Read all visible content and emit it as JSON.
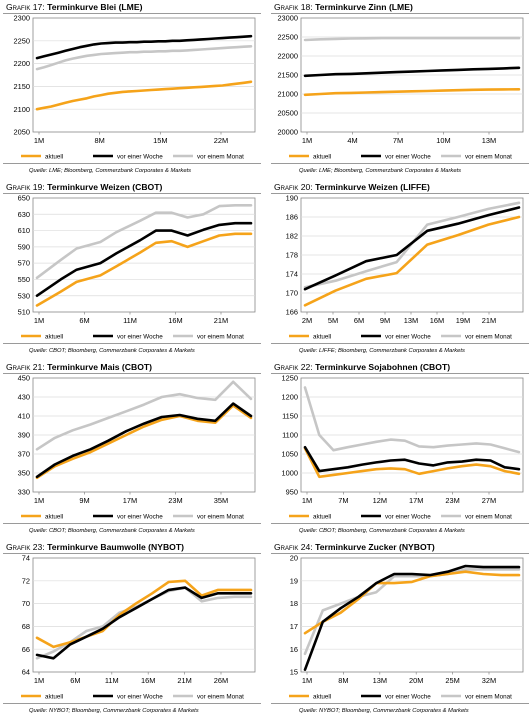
{
  "colors": {
    "aktuell": "#f5a31a",
    "vor_einer_woche": "#000000",
    "vor_einem_monat": "#c6c6c6"
  },
  "legend": {
    "aktuell": "aktuell",
    "woche": "vor einer Woche",
    "monat": "vor einem Monat"
  },
  "charts": [
    {
      "label": "Grafik 17:",
      "name": "Terminkurve Blei (LME)",
      "source": "Quelle: LME; Bloomberg, Commerzbank Corporates & Markets",
      "xticks": [
        "1M",
        "8M",
        "15M",
        "22M"
      ],
      "yticks": [
        "2050",
        "2100",
        "2150",
        "2200",
        "2250",
        "2300"
      ],
      "chart_data": {
        "type": "line",
        "ylim": [
          2050,
          2300
        ],
        "x": [
          0,
          1,
          2,
          3,
          4,
          5,
          6,
          7,
          8,
          9,
          10,
          11,
          12,
          13,
          14,
          15,
          16,
          17,
          18,
          19,
          20,
          21,
          22,
          23,
          24,
          25,
          26,
          27,
          28,
          29,
          30
        ],
        "series": [
          {
            "name": "aktuell",
            "values": [
              2100,
              2103,
              2106,
              2110,
              2114,
              2118,
              2121,
              2124,
              2128,
              2131,
              2134,
              2136,
              2138,
              2139,
              2140,
              2141,
              2142,
              2143,
              2144,
              2145,
              2146,
              2147,
              2148,
              2149,
              2150,
              2151,
              2152,
              2154,
              2156,
              2158,
              2160
            ]
          },
          {
            "name": "vor einer Woche",
            "values": [
              2212,
              2216,
              2220,
              2224,
              2228,
              2232,
              2236,
              2239,
              2242,
              2244,
              2245,
              2246,
              2246,
              2247,
              2247,
              2248,
              2248,
              2249,
              2249,
              2250,
              2250,
              2251,
              2252,
              2253,
              2254,
              2255,
              2256,
              2257,
              2258,
              2259,
              2260
            ]
          },
          {
            "name": "vor einem Monat",
            "values": [
              2188,
              2192,
              2197,
              2202,
              2207,
              2211,
              2214,
              2217,
              2219,
              2221,
              2222,
              2223,
              2224,
              2225,
              2225,
              2226,
              2226,
              2227,
              2227,
              2228,
              2228,
              2229,
              2230,
              2231,
              2232,
              2233,
              2234,
              2235,
              2236,
              2237,
              2238
            ]
          }
        ]
      }
    },
    {
      "label": "Grafik 18:",
      "name": "Terminkurve Zinn (LME)",
      "source": "Quelle: LME; Bloomberg, Commerzbank Corporates & Markets",
      "xticks": [
        "1M",
        "4M",
        "7M",
        "10M",
        "13M"
      ],
      "yticks": [
        "20000",
        "20500",
        "21000",
        "21500",
        "22000",
        "22500",
        "23000"
      ],
      "chart_data": {
        "type": "line",
        "ylim": [
          20000,
          23000
        ],
        "x": [
          0,
          1,
          2,
          3,
          4,
          5,
          6,
          7,
          8,
          9,
          10,
          11,
          12,
          13,
          14
        ],
        "series": [
          {
            "name": "aktuell",
            "values": [
              20980,
              21000,
              21020,
              21030,
              21040,
              21050,
              21060,
              21070,
              21080,
              21090,
              21100,
              21110,
              21115,
              21120,
              21125
            ]
          },
          {
            "name": "vor einer Woche",
            "values": [
              21480,
              21500,
              21520,
              21530,
              21545,
              21560,
              21575,
              21590,
              21605,
              21620,
              21635,
              21650,
              21660,
              21675,
              21690
            ]
          },
          {
            "name": "vor einem Monat",
            "values": [
              22420,
              22440,
              22450,
              22460,
              22465,
              22470,
              22470,
              22470,
              22470,
              22470,
              22470,
              22470,
              22470,
              22470,
              22470
            ]
          }
        ]
      }
    },
    {
      "label": "Grafik 19:",
      "name": "Terminkurve Weizen (CBOT)",
      "source": "Quelle: CBOT; Bloomberg, Commerzbank Corporates & Markets",
      "xticks": [
        "1M",
        "6M",
        "11M",
        "16M",
        "21M"
      ],
      "yticks": [
        "510",
        "530",
        "550",
        "570",
        "590",
        "610",
        "630",
        "650"
      ],
      "chart_data": {
        "type": "line",
        "ylim": [
          510,
          650
        ],
        "x": [
          0,
          3,
          5,
          8,
          10,
          13,
          15,
          17,
          19,
          21,
          23,
          25,
          27
        ],
        "series": [
          {
            "name": "aktuell",
            "values": [
              518,
              535,
              547,
              555,
              566,
              583,
              595,
              597,
              590,
              597,
              604,
              606,
              606
            ]
          },
          {
            "name": "vor einer Woche",
            "values": [
              530,
              550,
              562,
              570,
              582,
              598,
              610,
              610,
              604,
              611,
              617,
              619,
              619
            ]
          },
          {
            "name": "vor einem Monat",
            "values": [
              552,
              574,
              588,
              596,
              608,
              622,
              632,
              632,
              626,
              630,
              640,
              641,
              641
            ]
          }
        ]
      }
    },
    {
      "label": "Grafik 20:",
      "name": "Terminkurve Weizen (LIFFE)",
      "source": "Quelle: LIFFE; Bloomberg, Commerzbank Corporates & Markets",
      "xticks": [
        "2M",
        "5M",
        "6M",
        "9M",
        "13M",
        "16M",
        "19M",
        "21M"
      ],
      "yticks": [
        "166",
        "170",
        "174",
        "178",
        "182",
        "186",
        "190"
      ],
      "chart_data": {
        "type": "line",
        "ylim": [
          166,
          190
        ],
        "x": [
          0,
          1,
          2,
          3,
          4,
          5,
          6,
          7
        ],
        "series": [
          {
            "name": "aktuell",
            "values": [
              167.4,
              170.5,
              173,
              174.2,
              180.2,
              182.2,
              184.4,
              186
            ]
          },
          {
            "name": "vor einer Woche",
            "values": [
              170.8,
              173.7,
              176.7,
              178,
              183.1,
              184.6,
              186.4,
              188
            ]
          },
          {
            "name": "vor einem Monat",
            "values": [
              171.2,
              172.6,
              174.6,
              176.5,
              184.4,
              186,
              187.7,
              189
            ]
          }
        ]
      }
    },
    {
      "label": "Grafik 21:",
      "name": "Terminkurve Mais (CBOT)",
      "source": "Quelle: CBOT; Bloomberg, Commerzbank Corporates & Markets",
      "xticks": [
        "1M",
        "9M",
        "17M",
        "23M",
        "35M"
      ],
      "yticks": [
        "330",
        "350",
        "370",
        "390",
        "410",
        "430",
        "450"
      ],
      "chart_data": {
        "type": "line",
        "ylim": [
          330,
          450
        ],
        "x": [
          0,
          3,
          6,
          9,
          12,
          15,
          18,
          21,
          24,
          27,
          30,
          33,
          36
        ],
        "series": [
          {
            "name": "aktuell",
            "values": [
              345,
              357,
              365,
              372,
              381,
              390,
              399,
              406,
              410,
              405,
              403,
              421,
              408
            ]
          },
          {
            "name": "vor einer Woche",
            "values": [
              346,
              359,
              368,
              375,
              384,
              394,
              402,
              409,
              411,
              407,
              405,
              423,
              410
            ]
          },
          {
            "name": "vor einem Monat",
            "values": [
              375,
              387,
              395,
              401,
              408,
              415,
              422,
              430,
              433,
              429,
              427,
              446,
              428
            ]
          }
        ]
      }
    },
    {
      "label": "Grafik 22:",
      "name": "Terminkurve Sojabohnen (CBOT)",
      "source": "Quelle: CBOT; Bloomberg, Commerzbank Corporates & Markets",
      "xticks": [
        "1M",
        "7M",
        "12M",
        "17M",
        "23M",
        "27M"
      ],
      "yticks": [
        "950",
        "1000",
        "1050",
        "1100",
        "1150",
        "1200",
        "1250"
      ],
      "chart_data": {
        "type": "line",
        "ylim": [
          950,
          1250
        ],
        "x": [
          0,
          1,
          2,
          3,
          4,
          5,
          6,
          7,
          8,
          9,
          10,
          11,
          12,
          13,
          14,
          15
        ],
        "series": [
          {
            "name": "aktuell",
            "values": [
              1065,
              990,
              995,
              1000,
              1005,
              1010,
              1012,
              1010,
              998,
              1005,
              1012,
              1018,
              1022,
              1018,
              1005,
              998
            ]
          },
          {
            "name": "vor einer Woche",
            "values": [
              1068,
              1005,
              1010,
              1015,
              1022,
              1028,
              1033,
              1035,
              1025,
              1020,
              1028,
              1030,
              1035,
              1033,
              1015,
              1010
            ]
          },
          {
            "name": "vor einem Monat",
            "values": [
              1225,
              1100,
              1060,
              1068,
              1075,
              1082,
              1088,
              1085,
              1070,
              1068,
              1072,
              1075,
              1078,
              1075,
              1065,
              1055
            ]
          }
        ]
      }
    },
    {
      "label": "Grafik 23:",
      "name": "Terminkurve Baumwolle (NYBOT)",
      "source": "Quelle: NYBOT; Bloomberg, Commerzbank Corporates & Markets",
      "xticks": [
        "1M",
        "6M",
        "11M",
        "16M",
        "21M",
        "26M"
      ],
      "yticks": [
        "64",
        "66",
        "68",
        "70",
        "72",
        "74"
      ],
      "chart_data": {
        "type": "line",
        "ylim": [
          64,
          74
        ],
        "x": [
          0,
          1,
          2,
          3,
          4,
          5,
          6,
          7,
          8,
          9,
          10,
          11,
          12,
          13
        ],
        "series": [
          {
            "name": "aktuell",
            "values": [
              67,
              66.2,
              66.6,
              67.1,
              67.6,
              69,
              70,
              70.9,
              71.9,
              72,
              70.7,
              71.2,
              71.2,
              71.2
            ]
          },
          {
            "name": "vor einer Woche",
            "values": [
              65.5,
              65.2,
              66.4,
              67.1,
              67.8,
              68.8,
              69.6,
              70.4,
              71.2,
              71.4,
              70.5,
              70.9,
              70.9,
              70.9
            ]
          },
          {
            "name": "vor einem Monat",
            "values": [
              65.2,
              65.8,
              66.6,
              67.6,
              68,
              69.2,
              69.7,
              70.4,
              71.1,
              71.4,
              70.2,
              70.5,
              70.6,
              70.6
            ]
          }
        ]
      }
    },
    {
      "label": "Grafik 24:",
      "name": "Terminkurve Zucker (NYBOT)",
      "source": "Quelle: NYBOT; Bloomberg, Commerzbank Corporates & Markets",
      "xticks": [
        "1M",
        "8M",
        "13M",
        "20M",
        "25M",
        "32M"
      ],
      "yticks": [
        "15",
        "16",
        "17",
        "18",
        "19",
        "20"
      ],
      "chart_data": {
        "type": "line",
        "ylim": [
          15,
          20
        ],
        "x": [
          0,
          1,
          2,
          3,
          4,
          5,
          6,
          7,
          8,
          9,
          10,
          11,
          12
        ],
        "series": [
          {
            "name": "aktuell",
            "values": [
              16.7,
              17.2,
              17.6,
              18.2,
              18.9,
              18.9,
              18.95,
              19.2,
              19.3,
              19.4,
              19.3,
              19.25,
              19.25
            ]
          },
          {
            "name": "vor einer Woche",
            "values": [
              15.1,
              17.2,
              17.8,
              18.3,
              18.9,
              19.3,
              19.3,
              19.25,
              19.4,
              19.65,
              19.6,
              19.6,
              19.6
            ]
          },
          {
            "name": "vor einem Monat",
            "values": [
              15.8,
              17.7,
              18,
              18.3,
              18.5,
              19.2,
              19.2,
              19.2,
              19.3,
              19.5,
              19.5,
              19.5,
              19.5
            ]
          }
        ]
      }
    }
  ]
}
